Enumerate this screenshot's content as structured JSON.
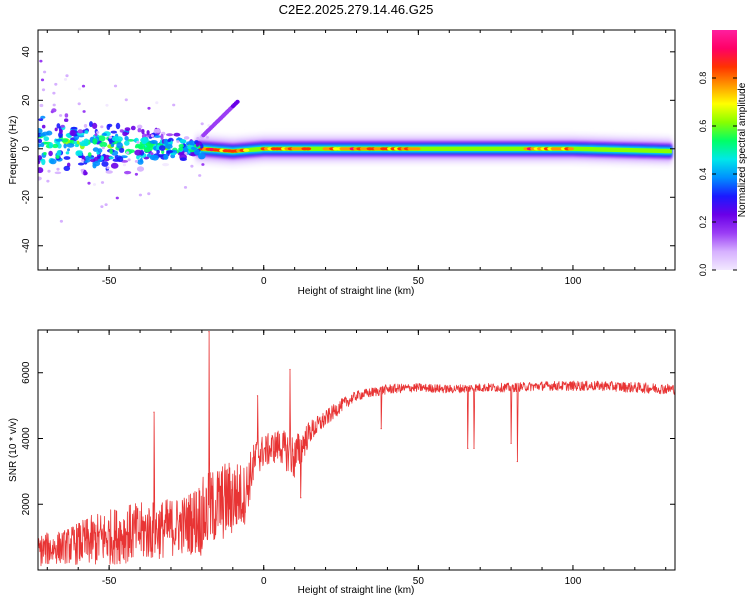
{
  "title": "C2E2.2025.279.14.46.G25",
  "chart_data": [
    {
      "type": "heatmap",
      "id": "spectrogram",
      "xlabel": "Height of straight line (km)",
      "ylabel": "Frequency (Hz)",
      "xlim": [
        -73,
        133
      ],
      "ylim": [
        -50,
        49
      ],
      "xticks": [
        -50,
        0,
        50,
        100
      ],
      "yticks": [
        -40,
        -20,
        0,
        20,
        40
      ],
      "description_values": {
        "ridge_center_hz": [
          {
            "x": -73,
            "hz": 2
          },
          {
            "x": -50,
            "hz": 1
          },
          {
            "x": -30,
            "hz": 1
          },
          {
            "x": -20,
            "hz": 0
          },
          {
            "x": -10,
            "hz": -1
          },
          {
            "x": 0,
            "hz": 0
          },
          {
            "x": 50,
            "hz": 0
          },
          {
            "x": 100,
            "hz": 0
          },
          {
            "x": 133,
            "hz": -1
          }
        ],
        "strong_segments_x": [
          [
            -20,
            -5
          ],
          [
            0,
            15
          ],
          [
            20,
            50
          ],
          [
            85,
            100
          ]
        ],
        "scatter_region_x": [
          -73,
          -20
        ],
        "outlier_arm": {
          "x": [
            -20,
            -8
          ],
          "hz": [
            5,
            20
          ]
        }
      },
      "colorbar": {
        "label": "Normalized spectral amplitude",
        "range": [
          0,
          1
        ],
        "ticks": [
          "0.0",
          "0.2",
          "0.4",
          "0.6",
          "0.8"
        ],
        "tick_values": [
          0,
          0.2,
          0.4,
          0.6,
          0.8
        ],
        "colors": [
          "#f2e9ff",
          "#d6b0ff",
          "#9b3df5",
          "#6a00e8",
          "#1a1aff",
          "#0090ff",
          "#00e8e8",
          "#00ff66",
          "#88ff00",
          "#ffff00",
          "#ff9900",
          "#ff3300",
          "#ff0066",
          "#ff1f9e"
        ]
      }
    },
    {
      "type": "line",
      "id": "snr",
      "xlabel": "Height of straight line (km)",
      "ylabel": "SNR (10 * v/v)",
      "xlim": [
        -73,
        133
      ],
      "ylim": [
        0,
        7300
      ],
      "xticks": [
        -50,
        0,
        50,
        100
      ],
      "yticks": [
        2000,
        4000,
        6000
      ],
      "color": "#e83434",
      "series": [
        {
          "name": "SNR",
          "x": [
            -73,
            -65,
            -55,
            -45,
            -35,
            -25,
            -20,
            -15,
            -10,
            -6,
            -4,
            -2,
            0,
            5,
            10,
            15,
            20,
            25,
            30,
            35,
            40,
            50,
            60,
            70,
            80,
            90,
            100,
            110,
            120,
            133
          ],
          "mean": [
            600,
            700,
            900,
            1100,
            1200,
            1400,
            1600,
            2000,
            2200,
            2300,
            3000,
            3500,
            3600,
            3800,
            3400,
            4200,
            4600,
            5000,
            5300,
            5400,
            5500,
            5550,
            5500,
            5550,
            5550,
            5600,
            5600,
            5600,
            5550,
            5500
          ],
          "noise": [
            500,
            500,
            800,
            900,
            900,
            900,
            1200,
            1200,
            1200,
            900,
            700,
            600,
            500,
            500,
            700,
            350,
            250,
            200,
            150,
            150,
            150,
            130,
            130,
            130,
            140,
            140,
            150,
            150,
            160,
            160
          ],
          "spikes": [
            {
              "x": -17.7,
              "y": 7250
            },
            {
              "x": -35.5,
              "y": 4800
            },
            {
              "x": -2.0,
              "y": 5300
            },
            {
              "x": 8.5,
              "y": 6100
            },
            {
              "x": 12.0,
              "y": 2200
            },
            {
              "x": 38.0,
              "y": 4300
            },
            {
              "x": 66.0,
              "y": 3700
            },
            {
              "x": 68.0,
              "y": 3700
            },
            {
              "x": 80.0,
              "y": 3850
            },
            {
              "x": 82.0,
              "y": 3300
            }
          ]
        }
      ]
    }
  ]
}
